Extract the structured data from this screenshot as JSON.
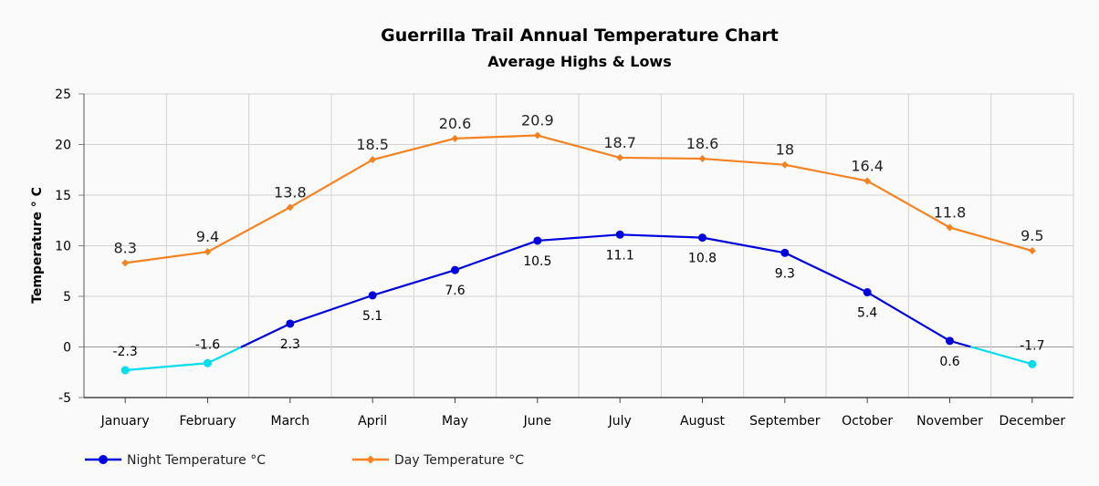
{
  "chart_data": {
    "type": "line",
    "title": "Guerrilla Trail Annual Temperature Chart",
    "subtitle": "Average Highs & Lows",
    "xlabel": "",
    "ylabel": "Temperature ° C",
    "ylim": [
      -5,
      25
    ],
    "yticks": [
      25,
      20,
      15,
      10,
      5,
      0,
      -5
    ],
    "grid": true,
    "legend_position": "bottom-left",
    "categories": [
      "January",
      "February",
      "March",
      "April",
      "May",
      "June",
      "July",
      "August",
      "September",
      "October",
      "November",
      "December"
    ],
    "series": [
      {
        "name": "Night Temperature °C",
        "values": [
          -2.3,
          -1.6,
          2.3,
          5.1,
          7.6,
          10.5,
          11.1,
          10.8,
          9.3,
          5.4,
          0.6,
          -1.7
        ],
        "color": "#0000dd",
        "below_zero_color": "#00ddee",
        "marker": "circle",
        "labels": [
          "-2.3",
          "-1.6",
          "2.3",
          "5.1",
          "7.6",
          "10.5",
          "11.1",
          "10.8",
          "9.3",
          "5.4",
          "0.6",
          "-1.7"
        ]
      },
      {
        "name": "Day Temperature °C",
        "values": [
          8.3,
          9.4,
          13.8,
          18.5,
          20.6,
          20.9,
          18.7,
          18.6,
          18,
          16.4,
          11.8,
          9.5
        ],
        "color": "#f58220",
        "marker": "diamond",
        "labels": [
          "8.3",
          "9.4",
          "13.8",
          "18.5",
          "20.6",
          "20.9",
          "18.7",
          "18.6",
          "18",
          "16.4",
          "11.8",
          "9.5"
        ]
      }
    ]
  }
}
